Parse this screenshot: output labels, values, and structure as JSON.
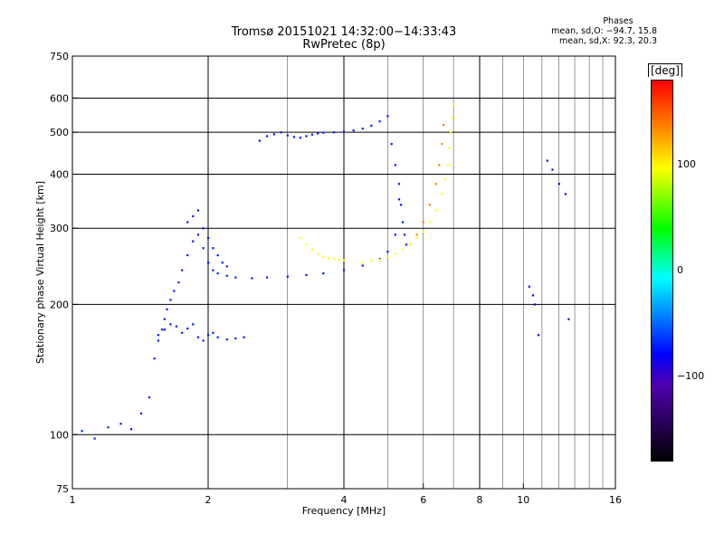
{
  "header": {
    "title_line1": "Tromsø 20151021 14:32:00−14:33:43",
    "title_line2": "RwPretec (8p)"
  },
  "phase_info": {
    "title": "Phases",
    "line_o": "mean, sd,O: −94.7, 15.8",
    "line_x": "mean, sd,X:  92.3, 20.3"
  },
  "colorbar": {
    "title": "[deg]",
    "ticks": [
      "100",
      "0",
      "−100"
    ],
    "tick_values": [
      100,
      0,
      -100
    ],
    "range": [
      -180,
      180
    ],
    "colors": [
      "#ff0000",
      "#ffff00",
      "#00ff00",
      "#00ffff",
      "#0000ff",
      "#000000"
    ]
  },
  "chart_data": {
    "type": "scatter",
    "xlabel": "Frequency [MHz]",
    "ylabel": "Stationary phase Virtual Height [km]",
    "x_scale": "log",
    "y_scale": "log",
    "xlim": [
      1,
      16
    ],
    "ylim": [
      75,
      750
    ],
    "x_ticks": [
      1,
      2,
      4,
      6,
      8,
      10,
      16
    ],
    "x_tick_labels": [
      "1",
      "2",
      "4",
      "6",
      "8",
      "10",
      "16"
    ],
    "y_ticks": [
      75,
      100,
      200,
      300,
      400,
      500,
      600,
      750
    ],
    "y_tick_labels": [
      "75",
      "100",
      "200",
      "300",
      "400",
      "500",
      "600",
      "750"
    ],
    "major_grid_x": [
      2,
      4,
      8
    ],
    "minor_grid_x": [
      3,
      5,
      6,
      7,
      9,
      10,
      11,
      12,
      13,
      14,
      15
    ],
    "major_grid_y": [
      100,
      200,
      300,
      400,
      500,
      600
    ],
    "series": [
      {
        "phase": -100,
        "x": [
          1.05,
          1.12,
          1.2,
          1.28,
          1.35,
          1.42,
          1.48,
          1.52,
          1.55,
          1.58,
          1.6,
          1.62,
          1.65,
          1.68,
          1.72,
          1.75,
          1.8,
          1.85,
          1.9,
          1.95,
          2.0,
          2.05,
          2.1,
          2.2,
          2.3,
          2.5,
          2.7,
          3.0,
          3.3,
          3.6,
          4.0,
          4.4,
          4.8,
          5.0,
          5.2,
          5.3
        ],
        "y": [
          102,
          98,
          104,
          106,
          103,
          112,
          122,
          150,
          165,
          175,
          185,
          195,
          205,
          215,
          225,
          240,
          260,
          280,
          290,
          270,
          250,
          240,
          236,
          233,
          231,
          230,
          231,
          232,
          234,
          236,
          240,
          246,
          255,
          265,
          290,
          350
        ]
      },
      {
        "phase": -100,
        "x": [
          2.6,
          2.7,
          2.8,
          2.9,
          3.0,
          3.1,
          3.2,
          3.3,
          3.4,
          3.5,
          3.6,
          3.8,
          4.0,
          4.2,
          4.4,
          4.6,
          4.8,
          5.0,
          5.1,
          5.2,
          5.3,
          5.35,
          5.4,
          5.45,
          5.5
        ],
        "y": [
          478,
          490,
          495,
          500,
          492,
          488,
          486,
          490,
          494,
          497,
          499,
          500,
          502,
          505,
          510,
          518,
          530,
          545,
          470,
          420,
          380,
          340,
          310,
          290,
          275
        ]
      },
      {
        "phase": -100,
        "x": [
          1.55,
          1.6,
          1.65,
          1.7,
          1.75,
          1.8,
          1.85,
          1.9,
          1.95,
          2.0,
          2.05,
          2.1,
          2.2,
          2.3,
          2.4
        ],
        "y": [
          170,
          175,
          180,
          178,
          172,
          176,
          180,
          168,
          165,
          170,
          172,
          168,
          166,
          167,
          168
        ]
      },
      {
        "phase": -100,
        "x": [
          1.8,
          1.85,
          1.9,
          1.95,
          2.0,
          2.05,
          2.1,
          2.15,
          2.2
        ],
        "y": [
          310,
          320,
          330,
          300,
          285,
          270,
          260,
          250,
          245
        ]
      },
      {
        "phase": 100,
        "x": [
          4.4,
          4.6,
          4.8,
          5.0,
          5.2,
          5.4,
          5.6,
          5.8,
          6.0,
          6.2,
          6.4,
          6.6,
          6.7,
          6.8,
          6.85,
          6.9,
          6.95,
          7.0
        ],
        "y": [
          250,
          252,
          254,
          258,
          262,
          268,
          275,
          285,
          295,
          310,
          330,
          360,
          390,
          420,
          460,
          500,
          540,
          580
        ]
      },
      {
        "phase": 100,
        "x": [
          3.2,
          3.3,
          3.4,
          3.5,
          3.6,
          3.7,
          3.8,
          3.9,
          4.0
        ],
        "y": [
          285,
          275,
          268,
          262,
          258,
          256,
          255,
          254,
          253
        ]
      },
      {
        "phase": 140,
        "x": [
          5.8,
          6.0,
          6.2,
          6.4,
          6.5,
          6.6,
          6.65
        ],
        "y": [
          290,
          310,
          340,
          380,
          420,
          470,
          520
        ]
      },
      {
        "phase": -120,
        "x": [
          10.3,
          10.5,
          10.6,
          10.8,
          11.3,
          11.6,
          12.0,
          12.4,
          12.6
        ],
        "y": [
          220,
          210,
          200,
          170,
          430,
          410,
          380,
          360,
          185
        ]
      }
    ]
  }
}
